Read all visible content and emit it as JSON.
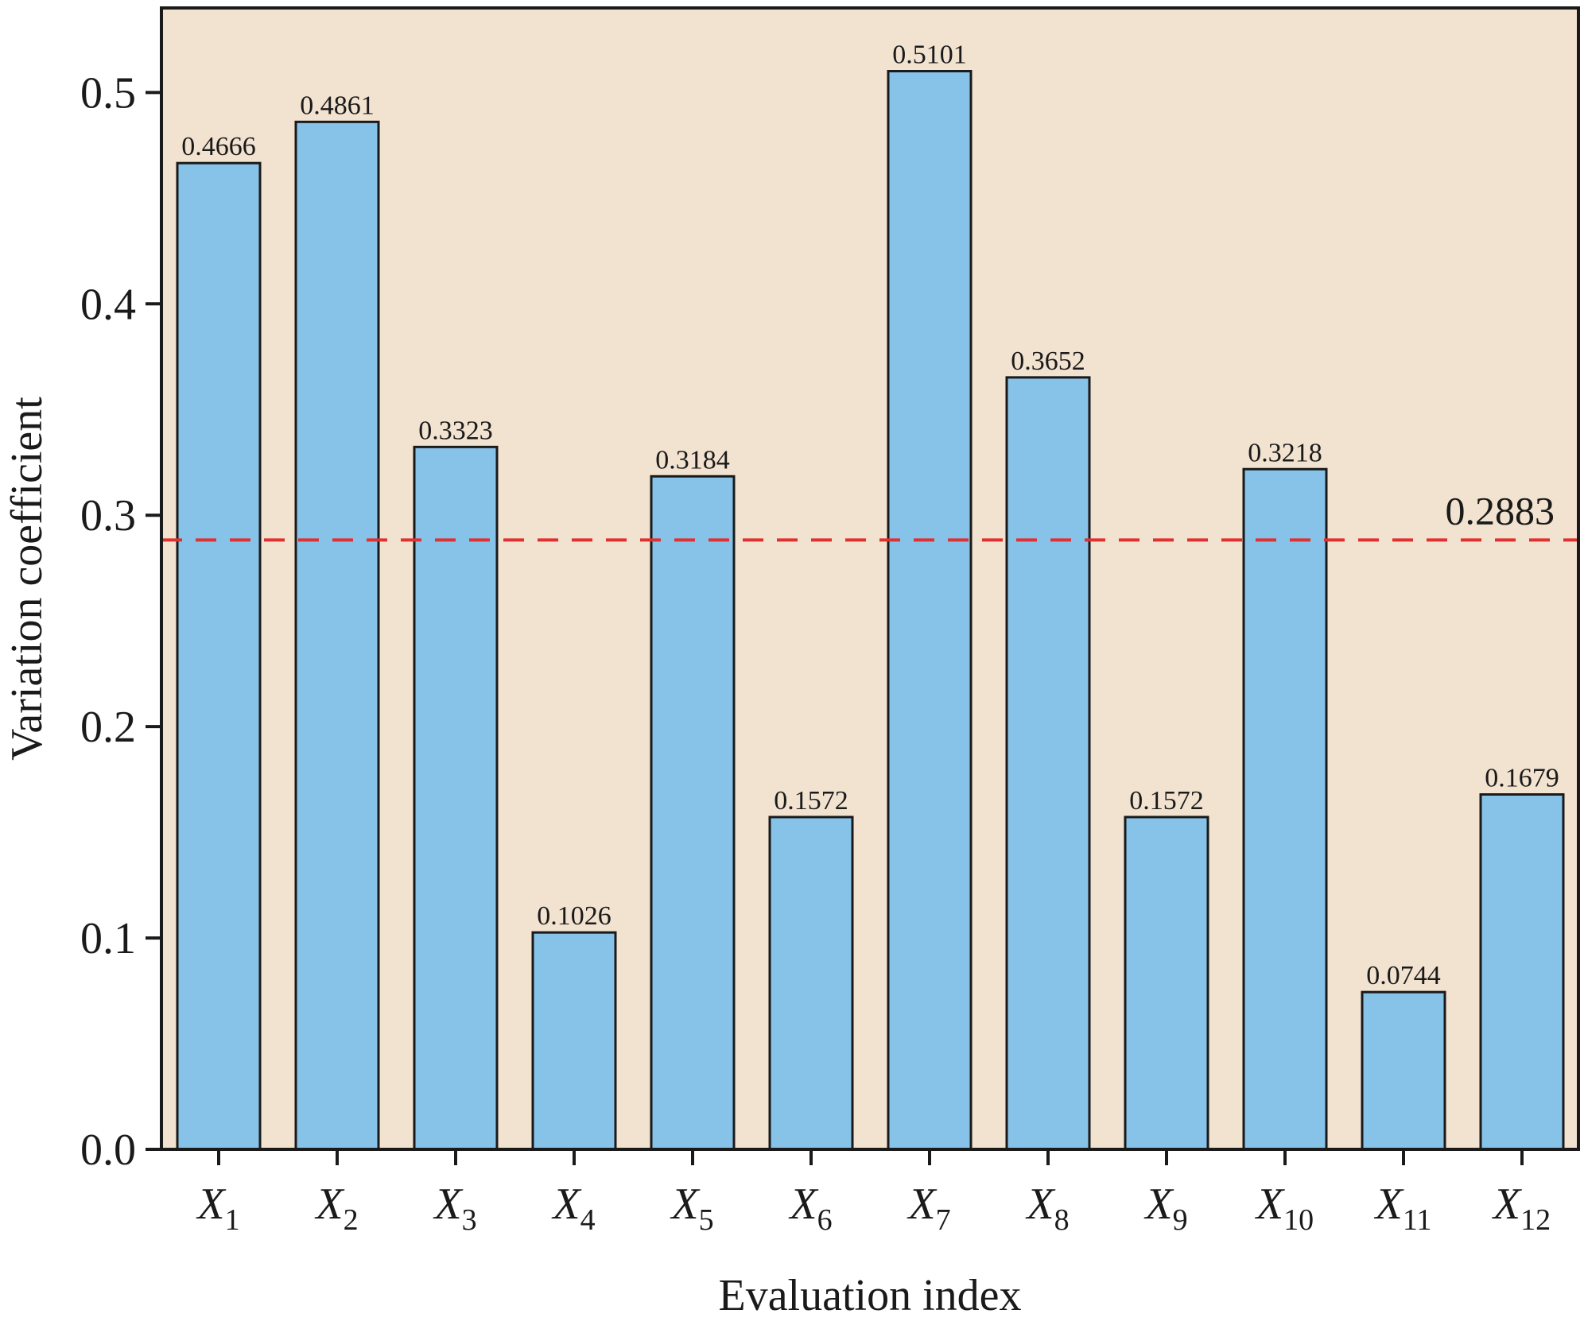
{
  "chart_data": {
    "type": "bar",
    "categories": [
      {
        "base": "X",
        "sub": "1"
      },
      {
        "base": "X",
        "sub": "2"
      },
      {
        "base": "X",
        "sub": "3"
      },
      {
        "base": "X",
        "sub": "4"
      },
      {
        "base": "X",
        "sub": "5"
      },
      {
        "base": "X",
        "sub": "6"
      },
      {
        "base": "X",
        "sub": "7"
      },
      {
        "base": "X",
        "sub": "8"
      },
      {
        "base": "X",
        "sub": "9"
      },
      {
        "base": "X",
        "sub": "10"
      },
      {
        "base": "X",
        "sub": "11"
      },
      {
        "base": "X",
        "sub": "12"
      }
    ],
    "values": [
      0.4666,
      0.4861,
      0.3323,
      0.1026,
      0.3184,
      0.1572,
      0.5101,
      0.3652,
      0.1572,
      0.3218,
      0.0744,
      0.1679
    ],
    "value_labels": [
      "0.4666",
      "0.4861",
      "0.3323",
      "0.1026",
      "0.3184",
      "0.1572",
      "0.5101",
      "0.3652",
      "0.1572",
      "0.3218",
      "0.0744",
      "0.1679"
    ],
    "xlabel": "Evaluation index",
    "ylabel": "Variation coefficient",
    "ylim": [
      0,
      0.54
    ],
    "yticks": [
      0.0,
      0.1,
      0.2,
      0.3,
      0.4,
      0.5
    ],
    "ytick_labels": [
      "0.0",
      "0.1",
      "0.2",
      "0.3",
      "0.4",
      "0.5"
    ],
    "reference_line": {
      "value": 0.2883,
      "label": "0.2883",
      "style": "dashed",
      "color": "#e03030"
    },
    "grid": false,
    "legend": "none",
    "colors": {
      "plot_background": "#f2e2d0",
      "bar_fill": "#87c3e8",
      "bar_stroke": "#1a1a1a",
      "axis": "#1a1a1a"
    }
  }
}
